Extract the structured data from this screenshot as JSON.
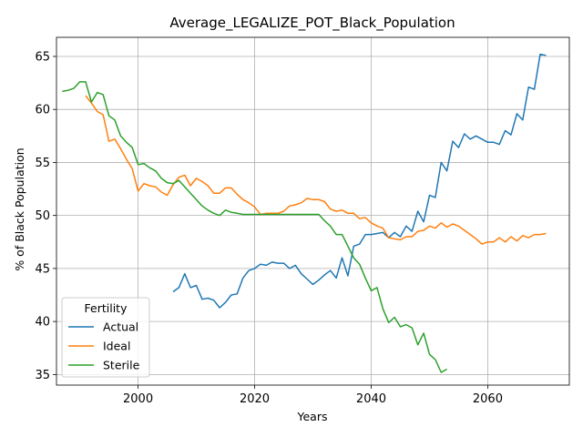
{
  "chart_data": {
    "type": "line",
    "title": "Average_LEGALIZE_POT_Black_Population",
    "xlabel": "Years",
    "ylabel": "% of Black Population",
    "xlim": [
      1986,
      2074
    ],
    "ylim": [
      34,
      66.8
    ],
    "xticks": [
      2000,
      2020,
      2040,
      2060
    ],
    "yticks": [
      35,
      40,
      45,
      50,
      55,
      60,
      65
    ],
    "grid": true,
    "legend": {
      "title": "Fertility",
      "position": "lower-left"
    },
    "series": [
      {
        "name": "Actual",
        "color": "#1f77b4",
        "x": [
          2006,
          2007,
          2008,
          2009,
          2010,
          2011,
          2012,
          2013,
          2014,
          2015,
          2016,
          2017,
          2018,
          2019,
          2020,
          2021,
          2022,
          2023,
          2024,
          2025,
          2026,
          2027,
          2028,
          2029,
          2030,
          2031,
          2032,
          2033,
          2034,
          2035,
          2036,
          2037,
          2038,
          2039,
          2040,
          2041,
          2042,
          2043,
          2044,
          2045,
          2046,
          2047,
          2048,
          2049,
          2050,
          2051,
          2052,
          2053,
          2054,
          2055,
          2056,
          2057,
          2058,
          2059,
          2060,
          2061,
          2062,
          2063,
          2064,
          2065,
          2066,
          2067,
          2068,
          2069,
          2070
        ],
        "y": [
          42.8,
          43.2,
          44.5,
          43.2,
          43.4,
          42.1,
          42.2,
          42.0,
          41.3,
          41.8,
          42.5,
          42.6,
          44.1,
          44.8,
          45.0,
          45.4,
          45.3,
          45.6,
          45.5,
          45.5,
          45.0,
          45.3,
          44.5,
          44.0,
          43.5,
          43.9,
          44.4,
          44.8,
          44.1,
          46.0,
          44.3,
          47.1,
          47.3,
          48.2,
          48.2,
          48.3,
          48.4,
          47.9,
          48.4,
          48.0,
          49.0,
          48.5,
          50.4,
          49.4,
          51.9,
          51.7,
          55.0,
          54.2,
          57.0,
          56.4,
          57.7,
          57.2,
          57.5,
          57.2,
          56.9,
          56.9,
          56.7,
          58.0,
          57.6,
          59.6,
          59.0,
          62.1,
          61.9,
          65.2,
          65.1
        ]
      },
      {
        "name": "Ideal",
        "color": "#ff7f0e",
        "x": [
          1991,
          1992,
          1993,
          1994,
          1995,
          1996,
          1997,
          1998,
          1999,
          2000,
          2001,
          2002,
          2003,
          2004,
          2005,
          2006,
          2007,
          2008,
          2009,
          2010,
          2011,
          2012,
          2013,
          2014,
          2015,
          2016,
          2017,
          2018,
          2019,
          2020,
          2021,
          2022,
          2023,
          2024,
          2025,
          2026,
          2027,
          2028,
          2029,
          2030,
          2031,
          2032,
          2033,
          2034,
          2035,
          2036,
          2037,
          2038,
          2039,
          2040,
          2041,
          2042,
          2043,
          2044,
          2045,
          2046,
          2047,
          2048,
          2049,
          2050,
          2051,
          2052,
          2053,
          2054,
          2055,
          2056,
          2057,
          2058,
          2059,
          2060,
          2061,
          2062,
          2063,
          2064,
          2065,
          2066,
          2067,
          2068,
          2069,
          2070
        ],
        "y": [
          61.3,
          60.6,
          59.8,
          59.5,
          57.0,
          57.2,
          56.3,
          55.3,
          54.4,
          52.3,
          53.0,
          52.8,
          52.7,
          52.2,
          51.9,
          52.9,
          53.6,
          53.8,
          52.8,
          53.5,
          53.2,
          52.8,
          52.1,
          52.1,
          52.6,
          52.6,
          52.0,
          51.5,
          51.2,
          50.8,
          50.1,
          50.2,
          50.2,
          50.2,
          50.4,
          50.9,
          51.0,
          51.2,
          51.6,
          51.5,
          51.5,
          51.3,
          50.6,
          50.4,
          50.5,
          50.2,
          50.2,
          49.7,
          49.8,
          49.3,
          49.0,
          48.8,
          47.9,
          47.8,
          47.7,
          48.0,
          48.0,
          48.5,
          48.6,
          49.0,
          48.8,
          49.3,
          48.9,
          49.2,
          49.0,
          48.6,
          48.2,
          47.8,
          47.3,
          47.5,
          47.5,
          47.9,
          47.5,
          48.0,
          47.6,
          48.1,
          47.9,
          48.2,
          48.2,
          48.3
        ]
      },
      {
        "name": "Sterile",
        "color": "#2ca02c",
        "x": [
          1987,
          1988,
          1989,
          1990,
          1991,
          1992,
          1993,
          1994,
          1995,
          1996,
          1997,
          1998,
          1999,
          2000,
          2001,
          2002,
          2003,
          2004,
          2005,
          2006,
          2007,
          2008,
          2009,
          2010,
          2011,
          2012,
          2013,
          2014,
          2015,
          2016,
          2017,
          2018,
          2019,
          2020,
          2021,
          2022,
          2023,
          2024,
          2025,
          2026,
          2027,
          2028,
          2029,
          2030,
          2031,
          2032,
          2033,
          2034,
          2035,
          2036,
          2037,
          2038,
          2039,
          2040,
          2041,
          2042,
          2043,
          2044,
          2045,
          2046,
          2047,
          2048,
          2049,
          2050,
          2051,
          2052,
          2053
        ],
        "y": [
          61.7,
          61.8,
          62.0,
          62.6,
          62.6,
          60.7,
          61.6,
          61.4,
          59.4,
          59.0,
          57.5,
          56.9,
          56.4,
          54.8,
          54.9,
          54.5,
          54.2,
          53.5,
          53.1,
          53.0,
          53.3,
          52.7,
          52.1,
          51.5,
          50.9,
          50.5,
          50.2,
          50.0,
          50.5,
          50.3,
          50.2,
          50.1,
          50.1,
          50.1,
          50.1,
          50.1,
          50.1,
          50.1,
          50.1,
          50.1,
          50.1,
          50.1,
          50.1,
          50.1,
          50.1,
          49.5,
          49.0,
          48.2,
          48.2,
          47.1,
          46.0,
          45.4,
          44.1,
          42.9,
          43.2,
          41.2,
          39.9,
          40.4,
          39.5,
          39.7,
          39.4,
          37.8,
          38.9,
          36.9,
          36.4,
          35.2,
          35.5
        ]
      }
    ]
  }
}
